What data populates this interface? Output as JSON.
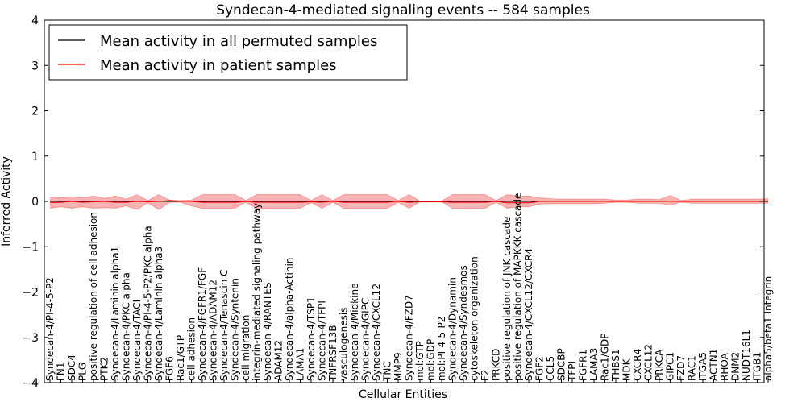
{
  "chart_data": {
    "type": "line",
    "title": "Syndecan-4-mediated signaling events -- 584 samples",
    "xlabel": "Cellular Entities",
    "ylabel": "Inferred Activity",
    "ylim": [
      -4,
      4
    ],
    "yticks": [
      -4,
      -3,
      -2,
      -1,
      0,
      1,
      2,
      3,
      4
    ],
    "ytick_labels": [
      "−4",
      "−3",
      "−2",
      "−1",
      "0",
      "1",
      "2",
      "3",
      "4"
    ],
    "legend_position": "top-left",
    "categories": [
      "Syndecan-4/PI-4-5-P2",
      "FN1",
      "SDC4",
      "PLG",
      "positive regulation of cell adhesion",
      "PTK2",
      "Syndecan-4/Laminin alpha1",
      "Syndecan-4/PKC alpha",
      "Syndecan-4/TACI",
      "Syndecan-4/PI-4-5-P2/PKC alpha",
      "Syndecan-4/Laminin alpha3",
      "FGF6",
      "Rac1/GTP",
      "cell adhesion",
      "Syndecan-4/FGFR1/FGF",
      "Syndecan-4/ADAM12",
      "Syndecan-4/Tenascin C",
      "Syndecan-4/Syntenin",
      "cell migration",
      "integrin-mediated signaling pathway",
      "Syndecan-4/RANTES",
      "ADAM12",
      "Syndecan-4/alpha-Actinin",
      "LAMA1",
      "Syndecan-4/TSP1",
      "Syndecan-4/TFPI",
      "TNFRSF13B",
      "vasculogenesis",
      "Syndecan-4/Midkine",
      "Syndecan-4/GIPC",
      "Syndecan-4/CXCL12",
      "TNC",
      "MMP9",
      "Syndecan-4/FZD7",
      "mol:GTP",
      "mol:GDP",
      "mol:PI-4-5-P2",
      "Syndecan-4/Dynamin",
      "Syndecan-4/Syndesmos",
      "cytoskeleton organization",
      "F2",
      "PRKCD",
      "positive regulation of JNK cascade",
      "positive regulation of MAPKKK cascade",
      "Syndecan-4/CXCL12/CXCR4",
      "FGF2",
      "CCL5",
      "SDCBP",
      "TFPI",
      "FGFR1",
      "LAMA3",
      "Rac1/GDP",
      "THBS1",
      "MDK",
      "CXCR4",
      "CXCL12",
      "PRKCA",
      "GIPC1",
      "FZD7",
      "RAC1",
      "ITGA5",
      "ACTN1",
      "RHOA",
      "DNM2",
      "NUDT16L1",
      "ITGB1",
      "alpha5/beta1 Integrin"
    ],
    "series": [
      {
        "name": "Mean activity in all permuted samples",
        "color": "#000000",
        "values": [
          0,
          0,
          0,
          0,
          0,
          0,
          0,
          0,
          0,
          0,
          0,
          0,
          0,
          0,
          0,
          0,
          0,
          0,
          0,
          0,
          0,
          0,
          0,
          0,
          0,
          0,
          0,
          0,
          0,
          0,
          0,
          0,
          0,
          0,
          0,
          0,
          0,
          0,
          0,
          0,
          0,
          0,
          0,
          0,
          0,
          0,
          0,
          0,
          0,
          0,
          0,
          0,
          0,
          0,
          0,
          0,
          0,
          0,
          0,
          0,
          0,
          0,
          0,
          0,
          0,
          0,
          0
        ]
      },
      {
        "name": "Mean activity in patient samples",
        "color": "#ff0000",
        "fill_color": "#f08080",
        "values": [
          -0.03,
          -0.02,
          0.0,
          -0.02,
          -0.01,
          0.0,
          -0.02,
          -0.02,
          0.0,
          -0.01,
          0.0,
          0.02,
          0.0,
          0.0,
          -0.02,
          -0.02,
          -0.02,
          -0.02,
          0.0,
          -0.02,
          -0.02,
          -0.02,
          -0.02,
          -0.02,
          -0.01,
          -0.02,
          0.0,
          -0.02,
          -0.02,
          -0.02,
          -0.02,
          -0.02,
          0.0,
          -0.02,
          -0.01,
          -0.01,
          -0.01,
          -0.02,
          -0.02,
          -0.02,
          -0.02,
          0.0,
          -0.03,
          -0.03,
          -0.03,
          0.0,
          0.0,
          0.0,
          0.0,
          0.0,
          0.0,
          0.0,
          0.0,
          0.0,
          0.0,
          0.0,
          0.0,
          0.0,
          0.0,
          0.0,
          0.0,
          0.0,
          0.0,
          0.0,
          0.0,
          0.0,
          0.01
        ],
        "band_upper": [
          0.1,
          0.08,
          0.1,
          0.08,
          0.12,
          0.07,
          0.12,
          0.05,
          0.15,
          0.02,
          0.15,
          0.03,
          0.02,
          0.03,
          0.15,
          0.15,
          0.15,
          0.15,
          0.02,
          0.15,
          0.15,
          0.15,
          0.15,
          0.15,
          0.02,
          0.15,
          0.02,
          0.15,
          0.15,
          0.15,
          0.15,
          0.15,
          0.02,
          0.15,
          0.01,
          0.01,
          0.01,
          0.15,
          0.15,
          0.15,
          0.15,
          0.02,
          0.15,
          0.12,
          0.12,
          0.08,
          0.06,
          0.05,
          0.05,
          0.05,
          0.05,
          0.05,
          0.03,
          0.03,
          0.05,
          0.05,
          0.04,
          0.13,
          0.02,
          0.05,
          0.05,
          0.05,
          0.05,
          0.05,
          0.05,
          0.05,
          0.06
        ],
        "band_lower": [
          -0.15,
          -0.12,
          -0.15,
          -0.12,
          -0.15,
          -0.14,
          -0.15,
          -0.1,
          -0.18,
          -0.03,
          -0.18,
          -0.02,
          -0.02,
          -0.1,
          -0.15,
          -0.15,
          -0.15,
          -0.15,
          -0.02,
          -0.15,
          -0.15,
          -0.15,
          -0.15,
          -0.15,
          -0.03,
          -0.15,
          -0.02,
          -0.15,
          -0.15,
          -0.15,
          -0.15,
          -0.15,
          -0.02,
          -0.15,
          -0.01,
          -0.01,
          -0.01,
          -0.15,
          -0.15,
          -0.15,
          -0.15,
          -0.02,
          -0.15,
          -0.12,
          -0.12,
          -0.06,
          -0.05,
          -0.05,
          -0.05,
          -0.05,
          -0.05,
          -0.04,
          -0.02,
          -0.02,
          -0.04,
          -0.04,
          -0.04,
          -0.08,
          -0.02,
          -0.04,
          -0.04,
          -0.04,
          -0.04,
          -0.04,
          -0.04,
          -0.04,
          -0.04
        ]
      }
    ]
  }
}
